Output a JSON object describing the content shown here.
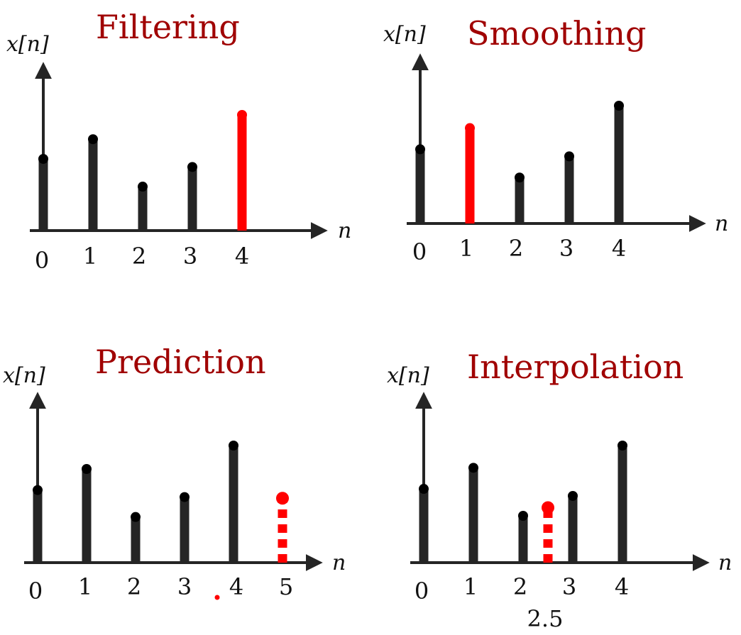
{
  "colors": {
    "black": "#252525",
    "red": "#ff0000",
    "title": "#a00000"
  },
  "chart_data": [
    {
      "type": "stem",
      "title": "Filtering",
      "ylabel": "x[n]",
      "xlabel": "n",
      "tick_labels": [
        "0",
        "1",
        "2",
        "3",
        "4"
      ],
      "ylim": [
        0,
        1
      ],
      "points": [
        {
          "n": 0,
          "value": 0.62,
          "style": "solid",
          "color": "black"
        },
        {
          "n": 1,
          "value": 0.79,
          "style": "solid",
          "color": "black"
        },
        {
          "n": 2,
          "value": 0.38,
          "style": "solid",
          "color": "black"
        },
        {
          "n": 3,
          "value": 0.55,
          "style": "solid",
          "color": "black"
        },
        {
          "n": 4,
          "value": 1.0,
          "style": "solid",
          "color": "red"
        }
      ]
    },
    {
      "type": "stem",
      "title": "Smoothing",
      "ylabel": "x[n]",
      "xlabel": "n",
      "tick_labels": [
        "0",
        "1",
        "2",
        "3",
        "4"
      ],
      "ylim": [
        0,
        1
      ],
      "points": [
        {
          "n": 0,
          "value": 0.63,
          "style": "solid",
          "color": "black"
        },
        {
          "n": 1,
          "value": 0.81,
          "style": "solid",
          "color": "red"
        },
        {
          "n": 2,
          "value": 0.39,
          "style": "solid",
          "color": "black"
        },
        {
          "n": 3,
          "value": 0.57,
          "style": "solid",
          "color": "black"
        },
        {
          "n": 4,
          "value": 1.0,
          "style": "solid",
          "color": "black"
        }
      ]
    },
    {
      "type": "stem",
      "title": "Prediction",
      "ylabel": "x[n]",
      "xlabel": "n",
      "tick_labels": [
        "0",
        "1",
        "2",
        "3",
        "4",
        "5"
      ],
      "ylim": [
        0,
        1
      ],
      "points": [
        {
          "n": 0,
          "value": 0.62,
          "style": "solid",
          "color": "black"
        },
        {
          "n": 1,
          "value": 0.8,
          "style": "solid",
          "color": "black"
        },
        {
          "n": 2,
          "value": 0.39,
          "style": "solid",
          "color": "black"
        },
        {
          "n": 3,
          "value": 0.56,
          "style": "solid",
          "color": "black"
        },
        {
          "n": 4,
          "value": 1.0,
          "style": "solid",
          "color": "black"
        },
        {
          "n": 5,
          "value": 0.55,
          "style": "dashed",
          "color": "red"
        }
      ]
    },
    {
      "type": "stem",
      "title": "Interpolation",
      "ylabel": "x[n]",
      "xlabel": "n",
      "tick_labels": [
        "0",
        "1",
        "2",
        "3",
        "4"
      ],
      "extra_tick_label": "2.5",
      "ylim": [
        0,
        1
      ],
      "points": [
        {
          "n": 0,
          "value": 0.63,
          "style": "solid",
          "color": "black"
        },
        {
          "n": 1,
          "value": 0.81,
          "style": "solid",
          "color": "black"
        },
        {
          "n": 2,
          "value": 0.4,
          "style": "solid",
          "color": "black"
        },
        {
          "n": 2.5,
          "value": 0.47,
          "style": "dashed",
          "color": "red"
        },
        {
          "n": 3,
          "value": 0.57,
          "style": "solid",
          "color": "black"
        },
        {
          "n": 4,
          "value": 1.0,
          "style": "solid",
          "color": "black"
        }
      ]
    }
  ]
}
